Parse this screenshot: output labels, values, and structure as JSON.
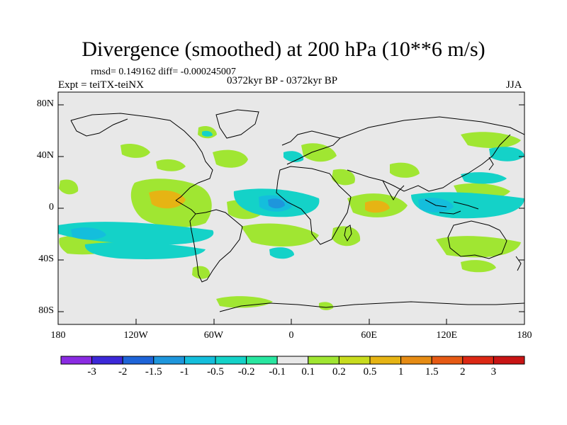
{
  "title": "Divergence (smoothed) at 200 hPa (10**6 m/s)",
  "stats": "rmsd= 0.149162 diff= -0.000245007",
  "experiment": "Expt = teiTX-teiNX",
  "period": "0372kyr BP - 0372kyr BP",
  "season": "JJA",
  "colors": {
    "ocean_background": "#e8e8e8",
    "coastline": "#000000"
  },
  "map": {
    "y_axis": [
      {
        "label": "80N",
        "lat": 80
      },
      {
        "label": "40N",
        "lat": 40
      },
      {
        "label": "0",
        "lat": 0
      },
      {
        "label": "40S",
        "lat": -40
      },
      {
        "label": "80S",
        "lat": -80
      }
    ],
    "x_axis": [
      {
        "label": "180",
        "lon": -180
      },
      {
        "label": "120W",
        "lon": -120
      },
      {
        "label": "60W",
        "lon": -60
      },
      {
        "label": "0",
        "lon": 0
      },
      {
        "label": "60E",
        "lon": 60
      },
      {
        "label": "120E",
        "lon": 120
      },
      {
        "label": "180",
        "lon": 180
      }
    ]
  },
  "colorbar": {
    "levels": [
      "-3",
      "-2",
      "-1.5",
      "-1",
      "-0.5",
      "-0.2",
      "-0.1",
      "0.1",
      "0.2",
      "0.5",
      "1",
      "1.5",
      "2",
      "3"
    ],
    "colors": [
      "#8a2be2",
      "#3c28d8",
      "#1e64d8",
      "#1e96dc",
      "#14bedc",
      "#14d2c8",
      "#28e6a0",
      "#e8e8e8",
      "#a0e632",
      "#c8dc1e",
      "#e6b414",
      "#e68c14",
      "#e65a14",
      "#dc2814",
      "#c81414"
    ]
  },
  "chart_data": {
    "type": "heatmap",
    "title": "Divergence (smoothed) at 200 hPa (10**6 m/s)",
    "units": "10**6 m/s",
    "lon_range": [
      -180,
      180
    ],
    "lat_range": [
      -90,
      90
    ],
    "anomaly_regions": [
      {
        "name": "east-pacific-positive",
        "lon": -100,
        "lat": 3,
        "value": 0.5
      },
      {
        "name": "central-pacific-negative-band",
        "lon": -120,
        "lat": -10,
        "value": -0.5
      },
      {
        "name": "south-pacific-negative-band",
        "lon": -110,
        "lat": -25,
        "value": -0.5
      },
      {
        "name": "south-pacific-positive",
        "lon": -160,
        "lat": -30,
        "value": 0.2
      },
      {
        "name": "atlantic-negative",
        "lon": -5,
        "lat": 2,
        "value": -1.0
      },
      {
        "name": "south-atlantic-positive",
        "lon": -20,
        "lat": -12,
        "value": 0.2
      },
      {
        "name": "african-positive",
        "lon": 22,
        "lat": -12,
        "value": 0.2
      },
      {
        "name": "indian-ocean-positive",
        "lon": 55,
        "lat": 0,
        "value": 1.0
      },
      {
        "name": "maritime-continent-negative",
        "lon": 110,
        "lat": 0,
        "value": -0.5
      },
      {
        "name": "west-pacific-positive",
        "lon": 150,
        "lat": -30,
        "value": 0.2
      },
      {
        "name": "north-pacific-negative",
        "lon": 160,
        "lat": 28,
        "value": -0.2
      },
      {
        "name": "greenland-positive",
        "lon": -50,
        "lat": 62,
        "value": 0.2
      },
      {
        "name": "europe-positive",
        "lon": 10,
        "lat": 50,
        "value": 0.2
      },
      {
        "name": "southern-ocean-positive",
        "lon": -50,
        "lat": -72,
        "value": 0.2
      }
    ]
  }
}
